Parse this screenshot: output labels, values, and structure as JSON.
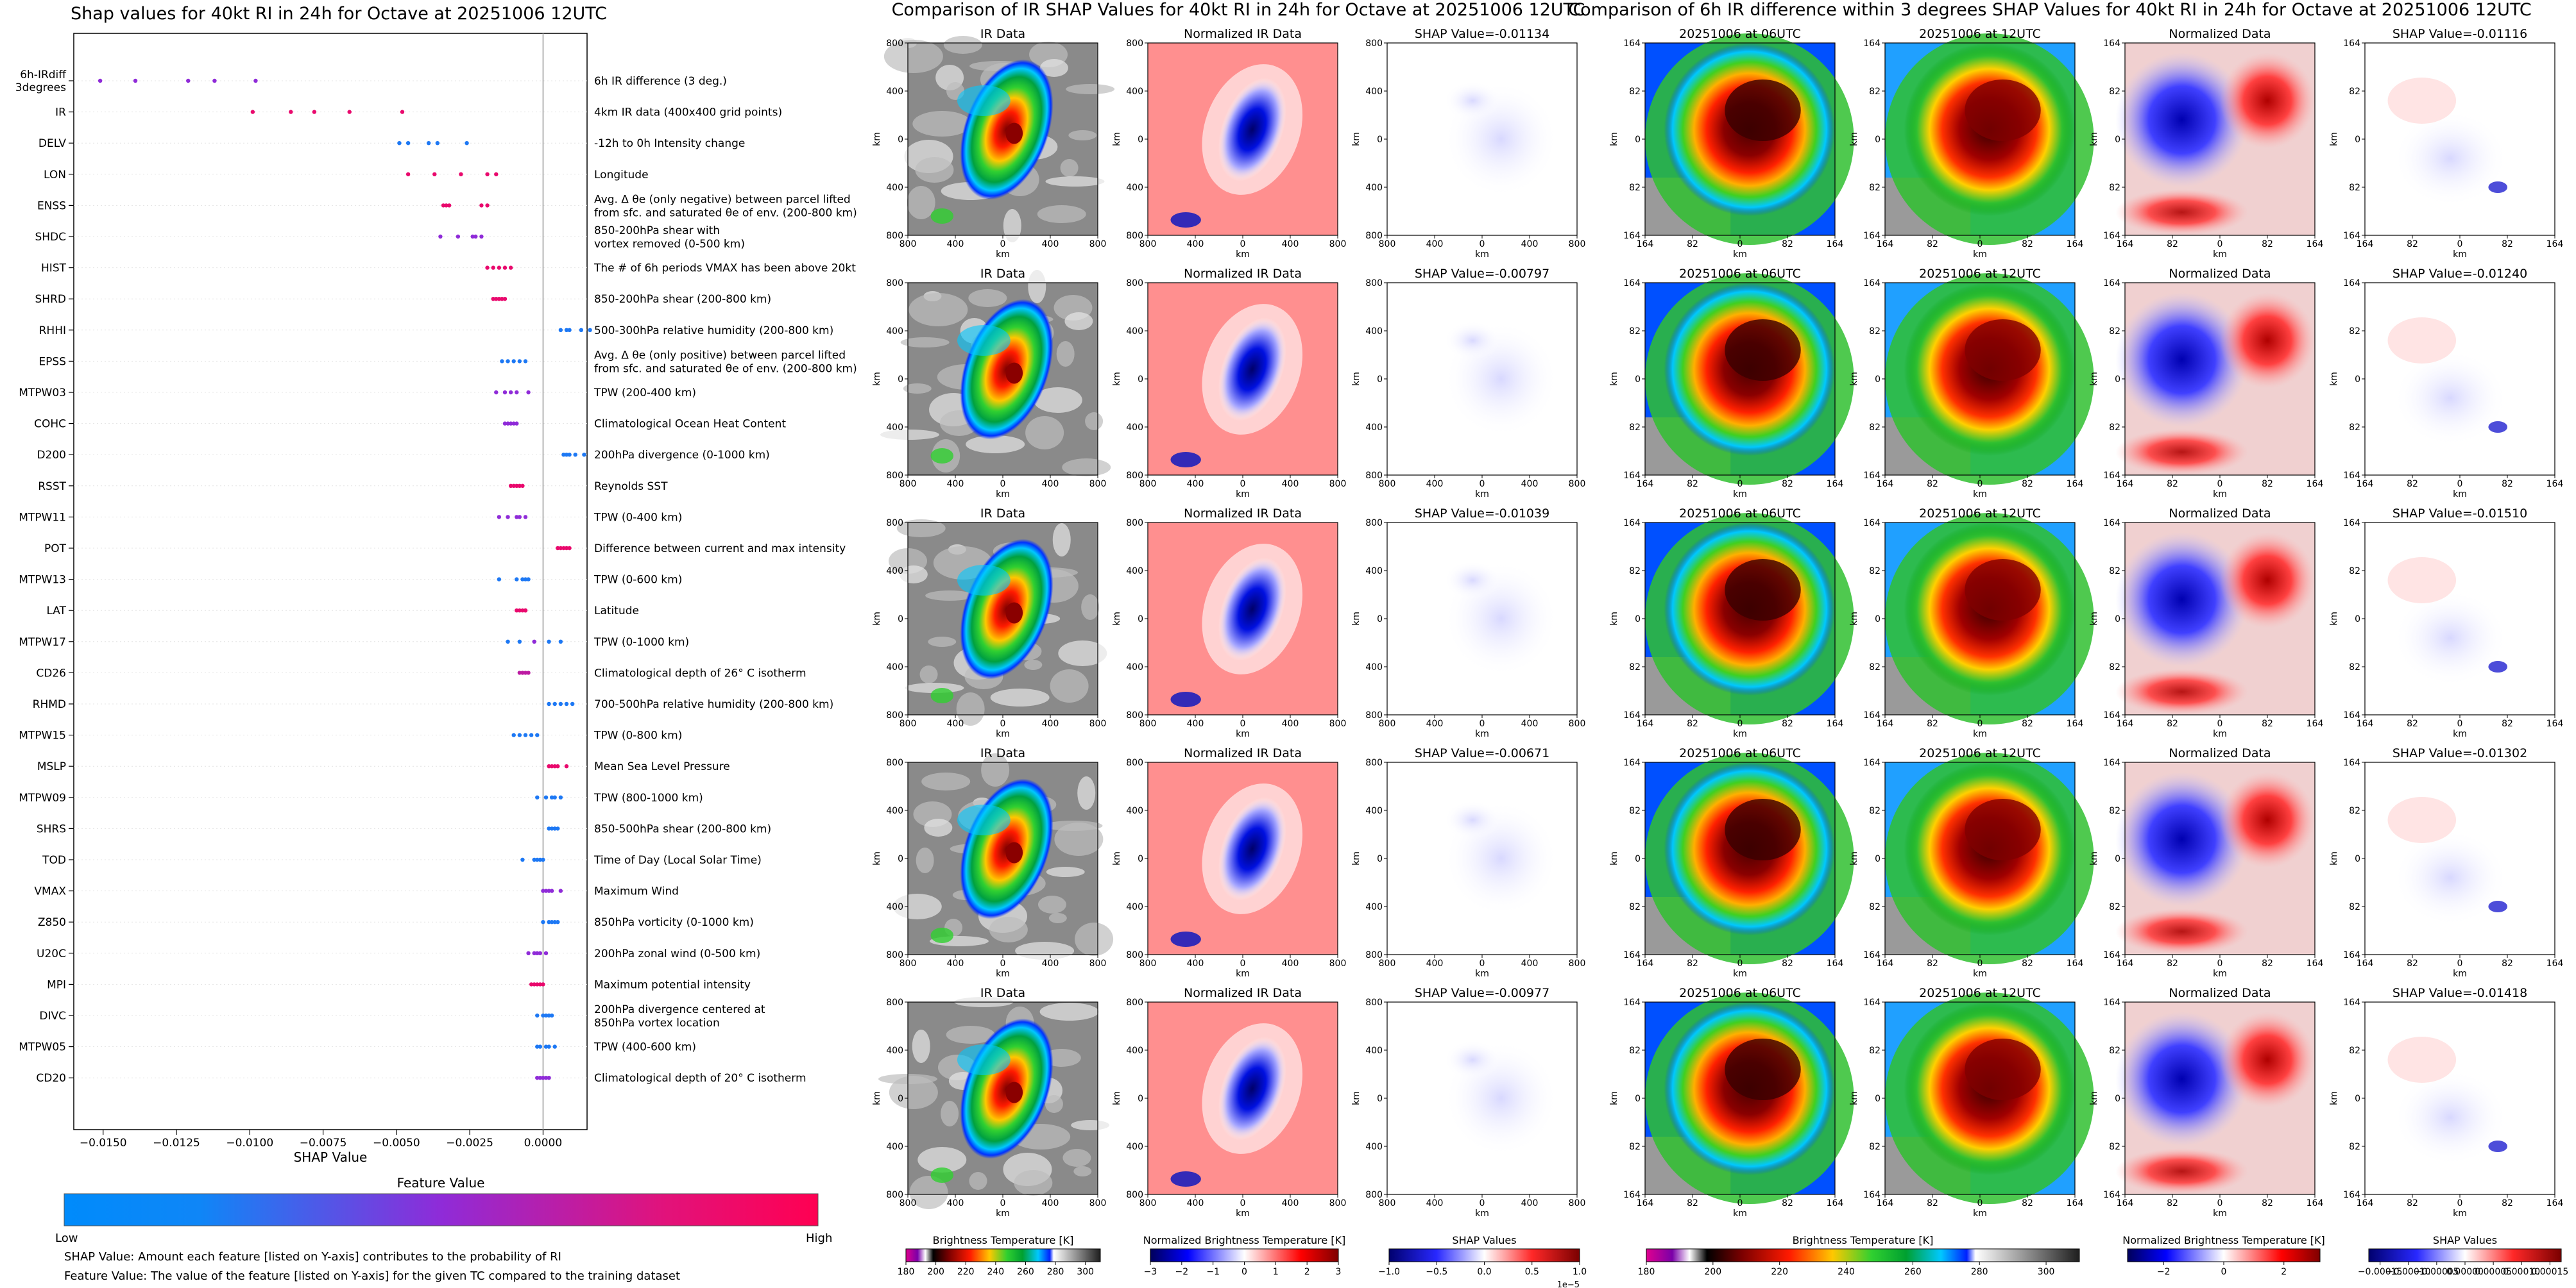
{
  "chart_data": [
    {
      "type": "scatter",
      "title": "Shap values for 40kt RI in 24h for Octave at 20251006 12UTC",
      "xlabel": "SHAP Value",
      "xlim": [
        -0.016,
        0.0015
      ],
      "xticks": [
        "-0.0150",
        "-0.0125",
        "-0.0100",
        "-0.0075",
        "-0.0050",
        "-0.0025",
        "0.0000"
      ],
      "xtick_values": [
        -0.015,
        -0.0125,
        -0.01,
        -0.0075,
        -0.005,
        -0.0025,
        0.0
      ],
      "colorbar": {
        "title": "Feature Value",
        "low": "Low",
        "high": "High",
        "colors": [
          "#008bfb",
          "#8f2bd8",
          "#ff0052"
        ]
      },
      "notes": [
        "SHAP Value: Amount each feature [listed on Y-axis] contributes to the probability of RI",
        "Feature Value: The value of the feature [listed on Y-axis] for the given TC compared to the training dataset"
      ],
      "features": [
        {
          "name": "6h-IRdiff\n3degrees",
          "desc": "6h IR difference (3 deg.)",
          "x": [
            -0.0151,
            -0.0139,
            -0.0121,
            -0.0112,
            -0.0098
          ],
          "c": [
            0.5,
            0.5,
            0.5,
            0.5,
            0.5
          ]
        },
        {
          "name": "IR",
          "desc": "4km IR data (400x400 grid points)",
          "x": [
            -0.0099,
            -0.0086,
            -0.0078,
            -0.0066,
            -0.0048
          ],
          "c": [
            0.9,
            0.9,
            0.9,
            0.9,
            0.9
          ]
        },
        {
          "name": "DELV",
          "desc": "-12h to 0h Intensity change",
          "x": [
            -0.0049,
            -0.0046,
            -0.0039,
            -0.0036,
            -0.0026
          ],
          "c": [
            0.1,
            0.1,
            0.1,
            0.1,
            0.1
          ]
        },
        {
          "name": "LON",
          "desc": "Longitude",
          "x": [
            -0.0046,
            -0.0037,
            -0.0028,
            -0.0019,
            -0.0016
          ],
          "c": [
            0.9,
            0.9,
            0.9,
            0.9,
            0.9
          ]
        },
        {
          "name": "ENSS",
          "desc": "Avg. Δ θe (only negative) between parcel lifted\nfrom sfc. and saturated θe of env. (200-800 km)",
          "x": [
            -0.0034,
            -0.0033,
            -0.0032,
            -0.0021,
            -0.0019
          ],
          "c": [
            0.9,
            0.9,
            0.9,
            0.9,
            0.9
          ]
        },
        {
          "name": "SHDC",
          "desc": "850-200hPa shear with\nvortex removed (0-500 km)",
          "x": [
            -0.0035,
            -0.0029,
            -0.0024,
            -0.0023,
            -0.0021
          ],
          "c": [
            0.5,
            0.5,
            0.5,
            0.5,
            0.5
          ]
        },
        {
          "name": "HIST",
          "desc": "The # of 6h periods VMAX has been above 20kt",
          "x": [
            -0.0019,
            -0.0017,
            -0.0015,
            -0.0013,
            -0.0011
          ],
          "c": [
            0.9,
            0.9,
            0.9,
            0.9,
            0.9
          ]
        },
        {
          "name": "SHRD",
          "desc": "850-200hPa shear (200-800 km)",
          "x": [
            -0.0017,
            -0.0016,
            -0.0015,
            -0.0014,
            -0.0013
          ],
          "c": [
            0.9,
            0.9,
            0.9,
            0.9,
            0.9
          ]
        },
        {
          "name": "RHHI",
          "desc": "500-300hPa relative humidity (200-800 km)",
          "x": [
            0.0006,
            0.0008,
            0.0009,
            0.0013,
            0.0016
          ],
          "c": [
            0.1,
            0.1,
            0.1,
            0.1,
            0.1
          ]
        },
        {
          "name": "EPSS",
          "desc": "Avg. Δ θe (only positive) between parcel lifted\nfrom sfc. and saturated θe of env. (200-800 km)",
          "x": [
            -0.0014,
            -0.0012,
            -0.001,
            -0.0008,
            -0.0006
          ],
          "c": [
            0.1,
            0.1,
            0.1,
            0.1,
            0.1
          ]
        },
        {
          "name": "MTPW03",
          "desc": "TPW (200-400 km)",
          "x": [
            -0.0016,
            -0.0013,
            -0.0011,
            -0.0009,
            -0.0005
          ],
          "c": [
            0.5,
            0.5,
            0.5,
            0.5,
            0.5
          ]
        },
        {
          "name": "COHC",
          "desc": "Climatological Ocean Heat Content",
          "x": [
            -0.0013,
            -0.0012,
            -0.0011,
            -0.001,
            -0.0009
          ],
          "c": [
            0.5,
            0.5,
            0.5,
            0.5,
            0.5
          ]
        },
        {
          "name": "D200",
          "desc": "200hPa divergence (0-1000 km)",
          "x": [
            0.0007,
            0.0008,
            0.0009,
            0.0011,
            0.0014
          ],
          "c": [
            0.1,
            0.1,
            0.1,
            0.1,
            0.1
          ]
        },
        {
          "name": "RSST",
          "desc": "Reynolds SST",
          "x": [
            -0.0011,
            -0.001,
            -0.0009,
            -0.0008,
            -0.0007
          ],
          "c": [
            0.9,
            0.9,
            0.9,
            0.9,
            0.9
          ]
        },
        {
          "name": "MTPW11",
          "desc": "TPW (0-400 km)",
          "x": [
            -0.0015,
            -0.0012,
            -0.0009,
            -0.0008,
            -0.0006
          ],
          "c": [
            0.5,
            0.5,
            0.5,
            0.5,
            0.5
          ]
        },
        {
          "name": "POT",
          "desc": "Difference between current and max intensity",
          "x": [
            0.0005,
            0.0006,
            0.0007,
            0.0008,
            0.0009
          ],
          "c": [
            0.9,
            0.9,
            0.9,
            0.9,
            0.9
          ]
        },
        {
          "name": "MTPW13",
          "desc": "TPW (0-600 km)",
          "x": [
            -0.0015,
            -0.0009,
            -0.0007,
            -0.0006,
            -0.0005
          ],
          "c": [
            0.1,
            0.1,
            0.1,
            0.1,
            0.1
          ]
        },
        {
          "name": "LAT",
          "desc": "Latitude",
          "x": [
            -0.0009,
            -0.0008,
            -0.0007,
            -0.0006,
            -0.0006
          ],
          "c": [
            0.9,
            0.9,
            0.9,
            0.9,
            0.9
          ]
        },
        {
          "name": "MTPW17",
          "desc": "TPW (0-1000 km)",
          "x": [
            -0.0012,
            -0.0008,
            -0.0003,
            0.0002,
            0.0006
          ],
          "c": [
            0.1,
            0.1,
            0.5,
            0.1,
            0.1
          ]
        },
        {
          "name": "CD26",
          "desc": "Climatological depth of 26° C isotherm",
          "x": [
            -0.0008,
            -0.0007,
            -0.0007,
            -0.0006,
            -0.0005
          ],
          "c": [
            0.7,
            0.7,
            0.7,
            0.7,
            0.7
          ]
        },
        {
          "name": "RHMD",
          "desc": "700-500hPa relative humidity (200-800 km)",
          "x": [
            0.0002,
            0.0004,
            0.0006,
            0.0008,
            0.001
          ],
          "c": [
            0.1,
            0.1,
            0.1,
            0.1,
            0.1
          ]
        },
        {
          "name": "MTPW15",
          "desc": "TPW (0-800 km)",
          "x": [
            -0.001,
            -0.0008,
            -0.0006,
            -0.0004,
            -0.0002
          ],
          "c": [
            0.1,
            0.1,
            0.1,
            0.1,
            0.1
          ]
        },
        {
          "name": "MSLP",
          "desc": "Mean Sea Level Pressure",
          "x": [
            0.0002,
            0.0003,
            0.0004,
            0.0005,
            0.0008
          ],
          "c": [
            0.9,
            0.9,
            0.9,
            0.9,
            0.9
          ]
        },
        {
          "name": "MTPW09",
          "desc": "TPW (800-1000 km)",
          "x": [
            -0.0002,
            0.0001,
            0.0003,
            0.0004,
            0.0006
          ],
          "c": [
            0.1,
            0.1,
            0.1,
            0.1,
            0.1
          ]
        },
        {
          "name": "SHRS",
          "desc": "850-500hPa shear (200-800 km)",
          "x": [
            0.0002,
            0.0003,
            0.0004,
            0.0004,
            0.0005
          ],
          "c": [
            0.1,
            0.1,
            0.1,
            0.1,
            0.1
          ]
        },
        {
          "name": "TOD",
          "desc": "Time of Day (Local Solar Time)",
          "x": [
            -0.0007,
            -0.0003,
            -0.0002,
            -0.0001,
            0.0
          ],
          "c": [
            0.1,
            0.1,
            0.1,
            0.1,
            0.1
          ]
        },
        {
          "name": "VMAX",
          "desc": "Maximum Wind",
          "x": [
            0.0,
            0.0001,
            0.0002,
            0.0003,
            0.0006
          ],
          "c": [
            0.5,
            0.5,
            0.5,
            0.5,
            0.5
          ]
        },
        {
          "name": "Z850",
          "desc": "850hPa vorticity (0-1000 km)",
          "x": [
            0.0,
            0.0002,
            0.0003,
            0.0004,
            0.0005
          ],
          "c": [
            0.1,
            0.1,
            0.1,
            0.1,
            0.1
          ]
        },
        {
          "name": "U20C",
          "desc": "200hPa zonal wind (0-500 km)",
          "x": [
            -0.0005,
            -0.0003,
            -0.0002,
            -0.0001,
            0.0001
          ],
          "c": [
            0.5,
            0.5,
            0.5,
            0.5,
            0.5
          ]
        },
        {
          "name": "MPI",
          "desc": "Maximum potential intensity",
          "x": [
            -0.0004,
            -0.0003,
            -0.0002,
            -0.0001,
            0.0
          ],
          "c": [
            0.9,
            0.9,
            0.9,
            0.9,
            0.9
          ]
        },
        {
          "name": "DIVC",
          "desc": "200hPa divergence centered at\n850hPa vortex location",
          "x": [
            -0.0002,
            0.0,
            0.0001,
            0.0002,
            0.0003
          ],
          "c": [
            0.1,
            0.1,
            0.1,
            0.1,
            0.1
          ]
        },
        {
          "name": "MTPW05",
          "desc": "TPW (400-600 km)",
          "x": [
            -0.0002,
            -0.0001,
            0.0001,
            0.0002,
            0.0004
          ],
          "c": [
            0.1,
            0.1,
            0.1,
            0.1,
            0.1
          ]
        },
        {
          "name": "CD20",
          "desc": "Climatological depth of 20° C isotherm",
          "x": [
            -0.0002,
            -0.0001,
            0.0,
            0.0001,
            0.0002
          ],
          "c": [
            0.5,
            0.5,
            0.5,
            0.5,
            0.5
          ]
        }
      ]
    },
    {
      "type": "heatmap",
      "title": "Comparison of IR SHAP Values for 40kt RI in 24h for Octave at 20251006 12UTC",
      "axis_label": "km",
      "ticks_x": [
        "800",
        "400",
        "0",
        "400",
        "800"
      ],
      "ticks_y": [
        "800",
        "400",
        "0",
        "400",
        "800"
      ],
      "columns": [
        "IR Data",
        "Normalized IR Data"
      ],
      "shap_titles": [
        "SHAP Value=-0.01134",
        "SHAP Value=-0.00797",
        "SHAP Value=-0.01039",
        "SHAP Value=-0.00671",
        "SHAP Value=-0.00977"
      ],
      "colorbars": [
        {
          "label": "Brightness Temperature [K]",
          "ticks": [
            "180",
            "200",
            "220",
            "240",
            "260",
            "280",
            "300"
          ],
          "vmin": 180,
          "vmax": 310
        },
        {
          "label": "Normalized Brightness Temperature [K]",
          "ticks": [
            "−3",
            "−2",
            "−1",
            "0",
            "1",
            "2",
            "3"
          ],
          "vmin": -3,
          "vmax": 3
        },
        {
          "label": "SHAP Values",
          "ticks": [
            "−1.0",
            "−0.5",
            "0.0",
            "0.5",
            "1.0"
          ],
          "vmin": -1,
          "vmax": 1,
          "offset": "1e−5"
        }
      ]
    },
    {
      "type": "heatmap",
      "title": "Comparison of 6h IR difference within 3 degrees SHAP Values for 40kt RI in 24h for Octave at 20251006 12UTC",
      "axis_label": "km",
      "ticks_x": [
        "164",
        "82",
        "0",
        "82",
        "164"
      ],
      "ticks_y": [
        "164",
        "82",
        "0",
        "82",
        "164"
      ],
      "columns": [
        "20251006 at 06UTC",
        "20251006 at 12UTC",
        "Normalized Data"
      ],
      "shap_titles": [
        "SHAP Value=-0.01116",
        "SHAP Value=-0.01240",
        "SHAP Value=-0.01510",
        "SHAP Value=-0.01302",
        "SHAP Value=-0.01418"
      ],
      "colorbars": [
        {
          "label": "Brightness Temperature [K]",
          "ticks": [
            "180",
            "200",
            "220",
            "240",
            "260",
            "280",
            "300"
          ],
          "vmin": 180,
          "vmax": 310
        },
        {
          "label": "Normalized Brightness Temperature [K]",
          "ticks": [
            "−2",
            "0",
            "2"
          ],
          "vmin": -3.2,
          "vmax": 3.2
        },
        {
          "label": "SHAP Values",
          "ticks": [
            "−0.00015",
            "−0.00010",
            "−0.00005",
            "0.00000",
            "0.00005",
            "0.00010",
            "0.00015"
          ],
          "vmin": -0.00017,
          "vmax": 0.00017
        }
      ]
    }
  ]
}
